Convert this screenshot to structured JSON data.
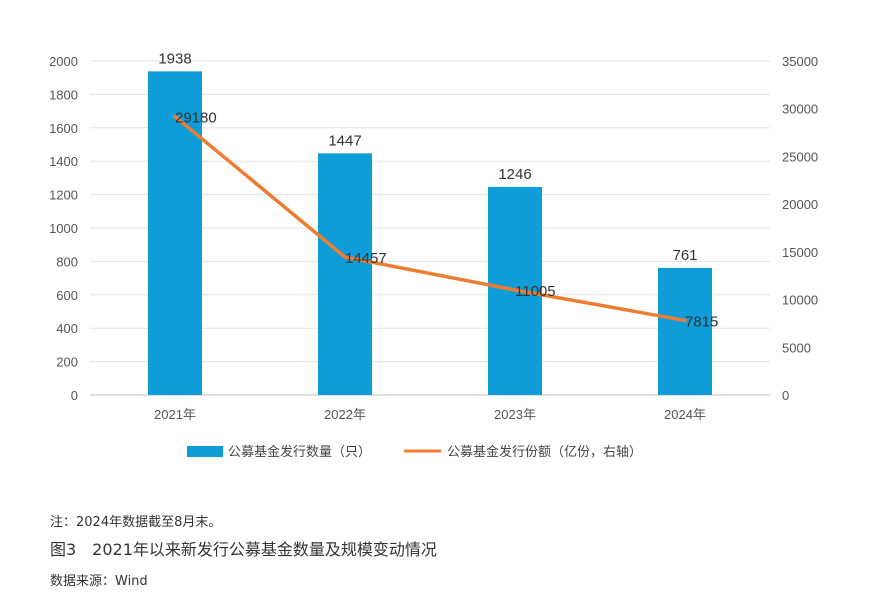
{
  "chart_data": {
    "type": "bar",
    "categories": [
      "2021年",
      "2022年",
      "2023年",
      "2024年"
    ],
    "series": [
      {
        "name": "公募基金发行数量（只）",
        "type": "bar",
        "axis": "left",
        "values": [
          1938,
          1447,
          1246,
          761
        ],
        "color": "#0E9DD8"
      },
      {
        "name": "公募基金发行份额（亿份，右轴）",
        "type": "line",
        "axis": "right",
        "values": [
          29180,
          14457,
          11005,
          7815
        ],
        "color": "#ED7D31"
      }
    ],
    "y_left": {
      "ylim": [
        0,
        2000
      ],
      "ticks": [
        0,
        200,
        400,
        600,
        800,
        1000,
        1200,
        1400,
        1600,
        1800,
        2000
      ]
    },
    "y_right": {
      "ylim": [
        0,
        35000
      ],
      "ticks": [
        0,
        5000,
        10000,
        15000,
        20000,
        25000,
        30000,
        35000
      ]
    },
    "grid": true,
    "legend_position": "bottom"
  },
  "caption": {
    "note": "注：2024年数据截至8月末。",
    "title": "图3　2021年以来新发行公募基金数量及规模变动情况",
    "source": "数据来源：Wind"
  }
}
